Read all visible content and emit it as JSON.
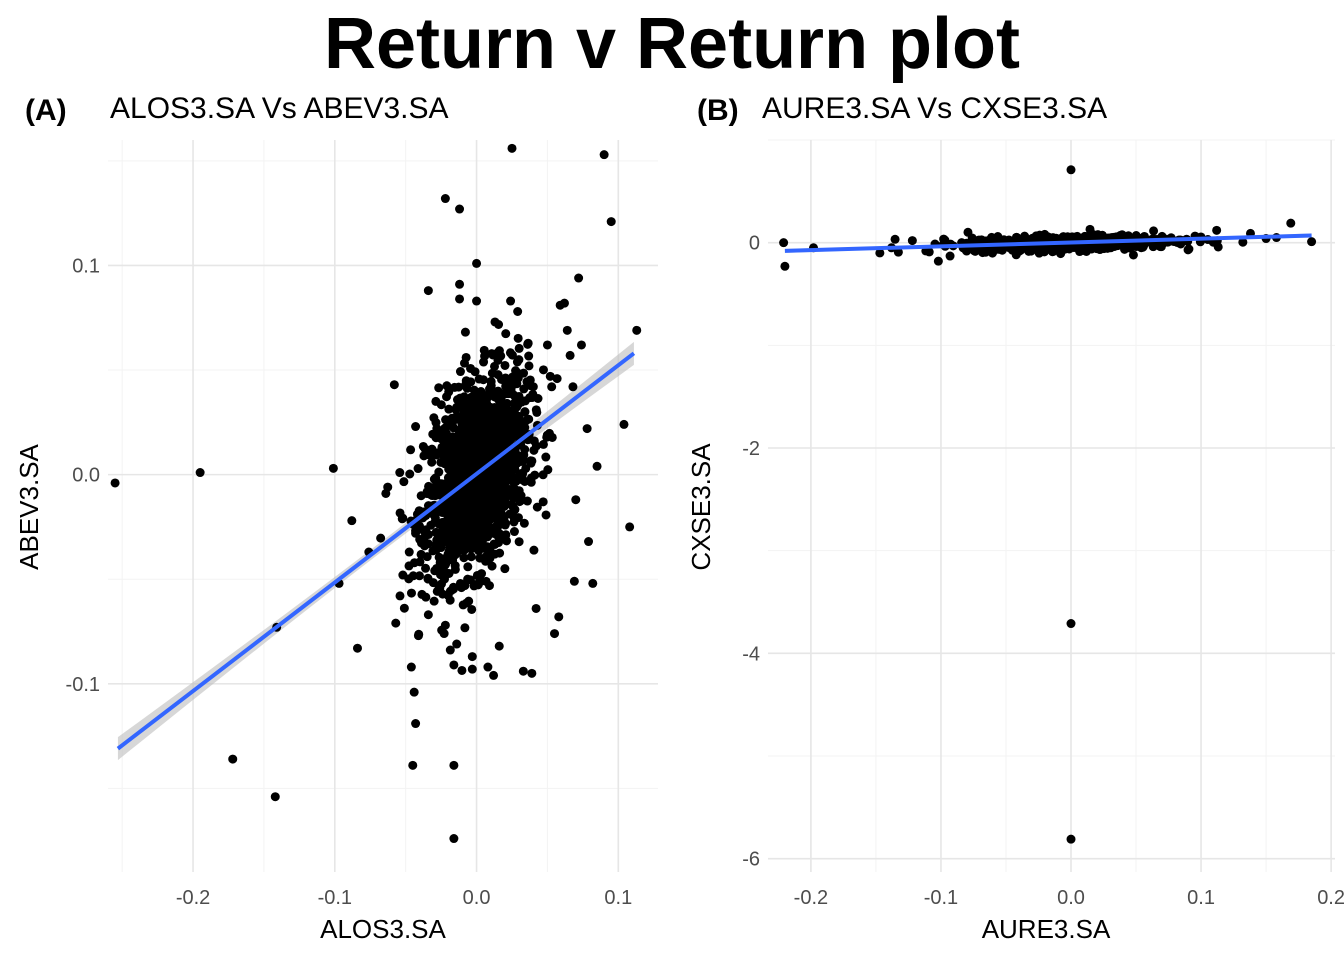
{
  "title": "Return v Return plot",
  "chart_data": [
    {
      "type": "scatter",
      "tag": "(A)",
      "title": "ALOS3.SA Vs ABEV3.SA",
      "xlabel": "ALOS3.SA",
      "ylabel": "ABEV3.SA",
      "xlim": [
        -0.26,
        0.128
      ],
      "ylim": [
        -0.19,
        0.16
      ],
      "x_ticks": [
        -0.2,
        -0.1,
        0.0,
        0.1
      ],
      "x_tick_labels": [
        "-0.2",
        "-0.1",
        "0.0",
        "0.1"
      ],
      "y_ticks": [
        -0.1,
        0.0,
        0.1
      ],
      "y_tick_labels": [
        "-0.1",
        "0.0",
        "0.1"
      ],
      "grid": true,
      "point_color": "#000000",
      "cluster": {
        "center": [
          0.0,
          0.0
        ],
        "spread": [
          0.018,
          0.022
        ],
        "count": 1600
      },
      "points": [
        [
          -0.255,
          -0.004
        ],
        [
          -0.195,
          0.001
        ],
        [
          -0.172,
          -0.136
        ],
        [
          -0.142,
          -0.154
        ],
        [
          -0.141,
          -0.073
        ],
        [
          -0.101,
          0.003
        ],
        [
          -0.097,
          -0.052
        ],
        [
          -0.084,
          -0.083
        ],
        [
          -0.088,
          -0.022
        ],
        [
          -0.076,
          -0.037
        ],
        [
          -0.064,
          -0.009
        ],
        [
          -0.058,
          0.043
        ],
        [
          -0.057,
          -0.071
        ],
        [
          -0.054,
          -0.058
        ],
        [
          -0.052,
          -0.048
        ],
        [
          -0.046,
          -0.092
        ],
        [
          -0.044,
          -0.104
        ],
        [
          -0.045,
          -0.139
        ],
        [
          -0.043,
          -0.119
        ],
        [
          -0.041,
          -0.077
        ],
        [
          -0.043,
          0.023
        ],
        [
          -0.034,
          -0.067
        ],
        [
          -0.034,
          0.088
        ],
        [
          -0.022,
          -0.072
        ],
        [
          -0.022,
          0.132
        ],
        [
          -0.016,
          -0.091
        ],
        [
          -0.016,
          -0.139
        ],
        [
          -0.016,
          -0.174
        ],
        [
          -0.014,
          -0.081
        ],
        [
          -0.012,
          0.091
        ],
        [
          -0.012,
          0.084
        ],
        [
          -0.012,
          0.127
        ],
        [
          -0.003,
          -0.093
        ],
        [
          -0.003,
          -0.087
        ],
        [
          0.0,
          0.101
        ],
        [
          0.0,
          0.083
        ],
        [
          0.008,
          -0.092
        ],
        [
          0.012,
          -0.096
        ],
        [
          0.013,
          0.073
        ],
        [
          0.016,
          -0.082
        ],
        [
          0.024,
          0.083
        ],
        [
          0.025,
          0.156
        ],
        [
          0.029,
          0.078
        ],
        [
          0.033,
          -0.094
        ],
        [
          0.037,
          0.052
        ],
        [
          0.039,
          -0.095
        ],
        [
          0.042,
          -0.064
        ],
        [
          0.05,
          0.062
        ],
        [
          0.052,
          0.047
        ],
        [
          0.053,
          0.042
        ],
        [
          0.055,
          -0.076
        ],
        [
          0.058,
          -0.068
        ],
        [
          0.062,
          0.082
        ],
        [
          0.064,
          0.069
        ],
        [
          0.066,
          0.057
        ],
        [
          0.068,
          0.042
        ],
        [
          0.069,
          -0.051
        ],
        [
          0.07,
          -0.012
        ],
        [
          0.072,
          0.094
        ],
        [
          0.074,
          0.062
        ],
        [
          0.078,
          0.022
        ],
        [
          0.079,
          -0.032
        ],
        [
          0.082,
          -0.052
        ],
        [
          0.085,
          0.004
        ],
        [
          0.09,
          0.153
        ],
        [
          0.095,
          0.121
        ],
        [
          0.104,
          0.024
        ],
        [
          0.108,
          -0.025
        ],
        [
          0.113,
          0.069
        ],
        [
          0.059,
          0.081
        ],
        [
          0.047,
          -0.013
        ],
        [
          -0.028,
          0.022
        ]
      ],
      "fit": {
        "x1": -0.253,
        "y1": -0.131,
        "x2": 0.111,
        "y2": 0.058,
        "color": "#3366ff",
        "band_halfwidth": 0.0055
      }
    },
    {
      "type": "scatter",
      "tag": "(B)",
      "title": "AURE3.SA Vs CXSE3.SA",
      "xlabel": "AURE3.SA",
      "ylabel": "CXSE3.SA",
      "xlim": [
        -0.233,
        0.203
      ],
      "ylim": [
        -6.13,
        1.0
      ],
      "x_ticks": [
        -0.2,
        -0.1,
        0.0,
        0.1,
        0.2
      ],
      "x_tick_labels": [
        "-0.2",
        "-0.1",
        "0.0",
        "0.1",
        "0.2"
      ],
      "y_ticks": [
        -6,
        -4,
        -2,
        0
      ],
      "y_tick_labels": [
        "-6",
        "-4",
        "-2",
        "0"
      ],
      "grid": true,
      "point_color": "#000000",
      "cluster": {
        "center": [
          0.0,
          0.0
        ],
        "spread": [
          0.04,
          0.035
        ],
        "count": 700
      },
      "points": [
        [
          0.0,
          0.71
        ],
        [
          0.0,
          -3.71
        ],
        [
          0.0,
          -5.81
        ],
        [
          -0.221,
          0.0
        ],
        [
          -0.22,
          -0.23
        ],
        [
          -0.198,
          -0.05
        ],
        [
          -0.147,
          -0.1
        ],
        [
          -0.138,
          -0.05
        ],
        [
          -0.122,
          0.02
        ],
        [
          -0.109,
          -0.09
        ],
        [
          -0.102,
          -0.18
        ],
        [
          -0.093,
          -0.13
        ],
        [
          -0.083,
          -0.05
        ],
        [
          -0.072,
          -0.02
        ],
        [
          0.048,
          -0.12
        ],
        [
          0.09,
          -0.07
        ],
        [
          0.112,
          0.12
        ],
        [
          0.138,
          0.09
        ],
        [
          0.15,
          0.04
        ],
        [
          0.158,
          0.05
        ],
        [
          0.169,
          0.19
        ],
        [
          0.185,
          0.01
        ]
      ],
      "fit": {
        "x1": -0.22,
        "y1": -0.08,
        "x2": 0.185,
        "y2": 0.07,
        "color": "#3366ff",
        "band_halfwidth": 0.02
      }
    }
  ]
}
